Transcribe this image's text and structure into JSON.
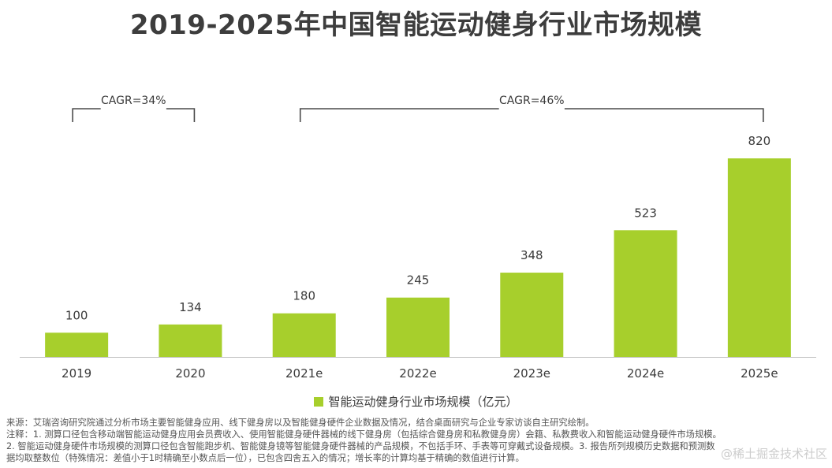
{
  "title": "2019-2025年中国智能运动健身行业市场规模",
  "colors": {
    "bar": "#a7cf2c",
    "axis": "#bfbfbf",
    "bracket": "#4a4a4a"
  },
  "chart_data": {
    "type": "bar",
    "title": "2019-2025年中国智能运动健身行业市场规模",
    "categories": [
      "2019",
      "2020",
      "2021e",
      "2022e",
      "2023e",
      "2024e",
      "2025e"
    ],
    "series": [
      {
        "name": "智能运动健身行业市场规模（亿元）",
        "values": [
          100,
          134,
          180,
          245,
          348,
          523,
          820
        ]
      }
    ],
    "ylim": [
      0,
      820
    ],
    "grid": false,
    "legend": "bottom",
    "annotations": [
      {
        "label": "CAGR=34%",
        "from": "2019",
        "to": "2020"
      },
      {
        "label": "CAGR=46%",
        "from": "2021e",
        "to": "2025e"
      }
    ]
  },
  "legend_label": "智能运动健身行业市场规模（亿元）",
  "notes": [
    "来源：艾瑞咨询研究院通过分析市场主要智能健身应用、线下健身房以及智能健身硬件企业数据及情况，结合桌面研究与企业专家访谈自主研究绘制。",
    "注释：1. 测算口径包含移动端智能运动健身应用会员费收入、使用智能健身硬件器械的线下健身房（包括综合健身房和私教健身房）会籍、私教费收入和智能运动健身硬件市场规模。",
    "2. 智能运动健身硬件市场规模的测算口径包含智能跑步机、智能健身镜等智能健身硬件器械的产品规模，不包括手环、手表等可穿戴式设备规模。3. 报告所列规模历史数据和预测数",
    "据均取整数位（特殊情况：差值小于1时精确至小数点后一位），已包含四舍五入的情况；增长率的计算均基于精确的数值进行计算。"
  ],
  "watermark": "@稀土掘金技术社区"
}
